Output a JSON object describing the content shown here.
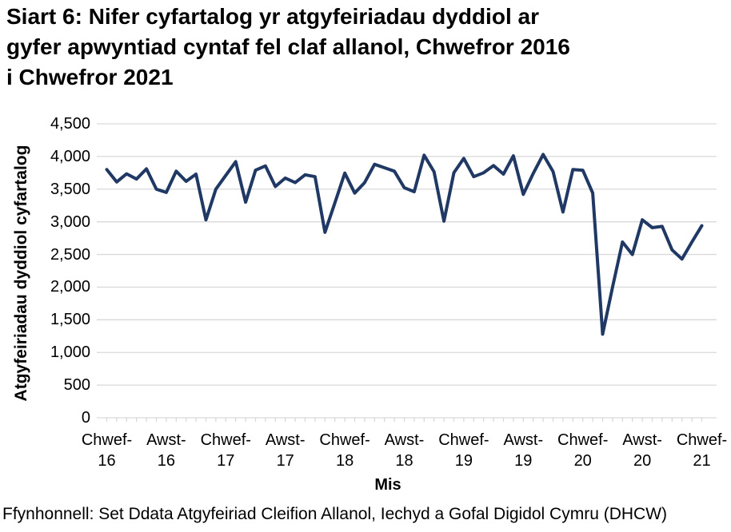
{
  "title": "Siart 6: Nifer cyfartalog yr atgyfeiriadau dyddiol ar\ngyfer apwyntiad cyntaf fel claf allanol, Chwefror 2016\ni Chwefror 2021",
  "footer": "Ffynhonnell: Set Ddata Atgyfeiriad Cleifion Allanol, Iechyd a Gofal Digidol Cymru (DHCW)",
  "chart_data": {
    "type": "line",
    "title": "Siart 6: Nifer cyfartalog yr atgyfeiriadau dyddiol ar gyfer apwyntiad cyntaf fel claf allanol, Chwefror 2016 i Chwefror 2021",
    "xlabel": "Mis",
    "ylabel": "Atgyfeiriadau dyddiol cyfartalog",
    "ylim": [
      0,
      4500
    ],
    "ytick_step": 500,
    "grid": true,
    "legend": false,
    "line_color": "#1f3864",
    "grid_color": "#d9d9d9",
    "ytick_labels": [
      "4,500",
      "4,000",
      "3,500",
      "3,000",
      "2,500",
      "2,000",
      "1,500",
      "1,000",
      "500",
      "0"
    ],
    "xtick_labels": [
      "Chwef-\n16",
      "Awst-\n16",
      "Chwef-\n17",
      "Awst-\n17",
      "Chwef-\n18",
      "Awst-\n18",
      "Chwef-\n19",
      "Awst-\n19",
      "Chwef-\n20",
      "Awst-\n20",
      "Chwef-\n21"
    ],
    "xtick_month_indices": [
      0,
      6,
      12,
      18,
      24,
      30,
      36,
      42,
      48,
      54,
      60
    ],
    "months": [
      "2016-02",
      "2016-03",
      "2016-04",
      "2016-05",
      "2016-06",
      "2016-07",
      "2016-08",
      "2016-09",
      "2016-10",
      "2016-11",
      "2016-12",
      "2017-01",
      "2017-02",
      "2017-03",
      "2017-04",
      "2017-05",
      "2017-06",
      "2017-07",
      "2017-08",
      "2017-09",
      "2017-10",
      "2017-11",
      "2017-12",
      "2018-01",
      "2018-02",
      "2018-03",
      "2018-04",
      "2018-05",
      "2018-06",
      "2018-07",
      "2018-08",
      "2018-09",
      "2018-10",
      "2018-11",
      "2018-12",
      "2019-01",
      "2019-02",
      "2019-03",
      "2019-04",
      "2019-05",
      "2019-06",
      "2019-07",
      "2019-08",
      "2019-09",
      "2019-10",
      "2019-11",
      "2019-12",
      "2020-01",
      "2020-02",
      "2020-03",
      "2020-04",
      "2020-05",
      "2020-06",
      "2020-07",
      "2020-08",
      "2020-09",
      "2020-10",
      "2020-11",
      "2020-12",
      "2021-01",
      "2021-02"
    ],
    "values": [
      3800,
      3610,
      3735,
      3655,
      3810,
      3500,
      3450,
      3775,
      3620,
      3730,
      3030,
      3500,
      3710,
      3920,
      3300,
      3790,
      3855,
      3540,
      3670,
      3600,
      3720,
      3690,
      2840,
      3290,
      3745,
      3440,
      3600,
      3880,
      3827,
      3775,
      3522,
      3461,
      4020,
      3766,
      3010,
      3750,
      3970,
      3690,
      3750,
      3860,
      3730,
      4010,
      3420,
      3740,
      4030,
      3770,
      3150,
      3800,
      3790,
      3440,
      1280,
      2000,
      2690,
      2500,
      3030,
      2910,
      2930,
      2570,
      2430,
      2690,
      2940
    ]
  }
}
